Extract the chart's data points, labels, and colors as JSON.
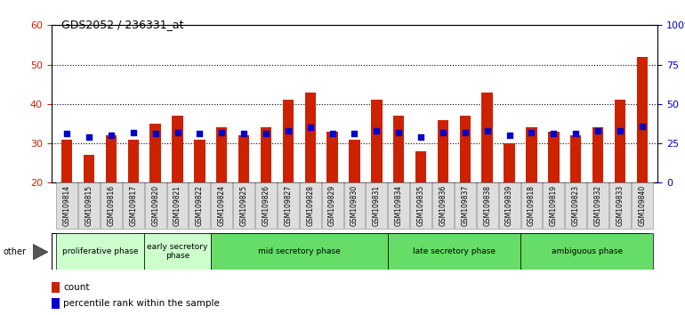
{
  "title": "GDS2052 / 236331_at",
  "samples": [
    "GSM109814",
    "GSM109815",
    "GSM109816",
    "GSM109817",
    "GSM109820",
    "GSM109821",
    "GSM109822",
    "GSM109824",
    "GSM109825",
    "GSM109826",
    "GSM109827",
    "GSM109828",
    "GSM109829",
    "GSM109830",
    "GSM109831",
    "GSM109834",
    "GSM109835",
    "GSM109836",
    "GSM109837",
    "GSM109838",
    "GSM109839",
    "GSM109818",
    "GSM109819",
    "GSM109823",
    "GSM109832",
    "GSM109833",
    "GSM109840"
  ],
  "count_values": [
    31,
    27,
    32,
    31,
    35,
    37,
    31,
    34,
    32,
    34,
    41,
    43,
    33,
    31,
    41,
    37,
    28,
    36,
    37,
    43,
    30,
    34,
    33,
    32,
    34,
    41,
    52
  ],
  "percentile_values": [
    31,
    29,
    30,
    32,
    31,
    32,
    31,
    32,
    31,
    31,
    33,
    35,
    31,
    31,
    33,
    32,
    29,
    32,
    32,
    33,
    30,
    32,
    31,
    31,
    33,
    33,
    36
  ],
  "bar_color": "#cc2200",
  "blue_color": "#0000cc",
  "ylim_left": [
    20,
    60
  ],
  "ylim_right": [
    0,
    100
  ],
  "yticks_left": [
    20,
    30,
    40,
    50,
    60
  ],
  "yticks_right": [
    0,
    25,
    50,
    75,
    100
  ],
  "ytick_labels_right": [
    "0",
    "25",
    "50",
    "75",
    "100%"
  ],
  "grid_values": [
    30,
    40,
    50
  ],
  "phases_def": [
    {
      "label": "proliferative phase",
      "start": 0,
      "end": 4,
      "color": "#ccffcc"
    },
    {
      "label": "early secretory\nphase",
      "start": 4,
      "end": 7,
      "color": "#ccffcc"
    },
    {
      "label": "mid secretory phase",
      "start": 7,
      "end": 15,
      "color": "#66dd66"
    },
    {
      "label": "late secretory phase",
      "start": 15,
      "end": 21,
      "color": "#66dd66"
    },
    {
      "label": "ambiguous phase",
      "start": 21,
      "end": 27,
      "color": "#66dd66"
    }
  ],
  "legend_count_label": "count",
  "legend_percentile_label": "percentile rank within the sample",
  "bar_width": 0.5,
  "ylabel_left_color": "#cc2200",
  "ylabel_right_color": "#0000cc",
  "other_label": "other"
}
